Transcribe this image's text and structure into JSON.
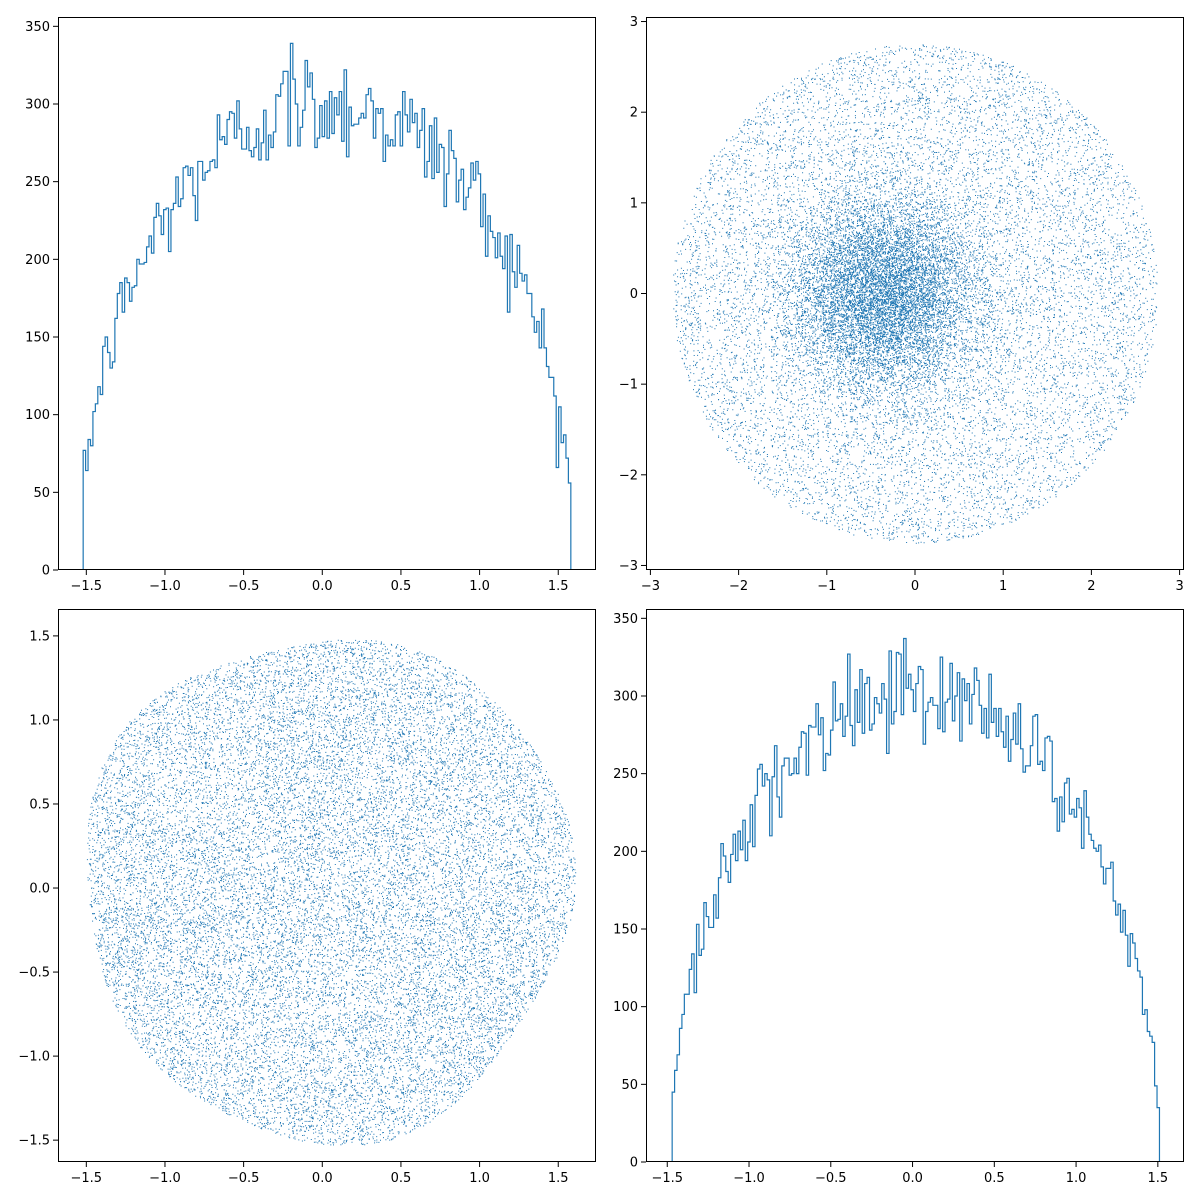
{
  "figure": {
    "background": "#ffffff",
    "series_color": "#1f77b4"
  },
  "chart_data": [
    {
      "type": "histogram",
      "panel": "top-left",
      "title": "",
      "xlabel": "",
      "ylabel": "",
      "xlim": [
        -1.68,
        1.74
      ],
      "ylim": [
        0,
        356
      ],
      "xticks": [
        -1.5,
        -1.0,
        -0.5,
        0.0,
        0.5,
        1.0,
        1.5
      ],
      "xtick_labels": [
        "−1.5",
        "−1.0",
        "−0.5",
        "0.0",
        "0.5",
        "1.0",
        "1.5"
      ],
      "yticks": [
        0,
        50,
        100,
        150,
        200,
        250,
        300,
        350
      ],
      "ytick_labels": [
        "0",
        "50",
        "100",
        "150",
        "200",
        "250",
        "300",
        "350"
      ],
      "histtype": "step",
      "bins": 200,
      "bin_range": [
        -1.52,
        1.58
      ],
      "envelope": {
        "center": 0.03,
        "half_width": 1.57,
        "peak": 300
      },
      "tallest_bin": {
        "x": -0.2,
        "count": 339
      },
      "grid": false
    },
    {
      "type": "scatter",
      "panel": "top-right",
      "title": "",
      "xlabel": "",
      "ylabel": "",
      "xlim": [
        -3.05,
        3.05
      ],
      "ylim": [
        -3.05,
        3.05
      ],
      "xticks": [
        -3,
        -2,
        -1,
        0,
        1,
        2,
        3
      ],
      "xtick_labels": [
        "−3",
        "−2",
        "−1",
        "0",
        "1",
        "2",
        "3"
      ],
      "yticks": [
        -3,
        -2,
        -1,
        0,
        1,
        2,
        3
      ],
      "ytick_labels": [
        "−3",
        "−2",
        "−1",
        "0",
        "1",
        "2",
        "3"
      ],
      "marker": "pixel",
      "n_points": 22000,
      "support_radius": 2.75,
      "dense_center": [
        -0.35,
        0.0
      ],
      "grid": false
    },
    {
      "type": "scatter",
      "panel": "bottom-left",
      "title": "",
      "xlabel": "",
      "ylabel": "",
      "xlim": [
        -1.68,
        1.74
      ],
      "ylim": [
        -1.63,
        1.66
      ],
      "xticks": [
        -1.5,
        -1.0,
        -0.5,
        0.0,
        0.5,
        1.0,
        1.5
      ],
      "xtick_labels": [
        "−1.5",
        "−1.0",
        "−0.5",
        "0.0",
        "0.5",
        "1.0",
        "1.5"
      ],
      "yticks": [
        -1.5,
        -1.0,
        -0.5,
        0.0,
        0.5,
        1.0,
        1.5
      ],
      "ytick_labels": [
        "−1.5",
        "−1.0",
        "−0.5",
        "0.0",
        "0.5",
        "1.0",
        "1.5"
      ],
      "marker": "pixel",
      "n_points": 22000,
      "support_center": [
        0.03,
        0.01
      ],
      "support_radius": [
        1.55,
        1.5
      ],
      "grid": false
    },
    {
      "type": "histogram",
      "panel": "bottom-right",
      "title": "",
      "xlabel": "",
      "ylabel": "",
      "xlim": [
        -1.63,
        1.66
      ],
      "ylim": [
        0,
        356
      ],
      "xticks": [
        -1.5,
        -1.0,
        -0.5,
        0.0,
        0.5,
        1.0,
        1.5
      ],
      "xtick_labels": [
        "−1.5",
        "−1.0",
        "−0.5",
        "0.0",
        "0.5",
        "1.0",
        "1.5"
      ],
      "yticks": [
        0,
        50,
        100,
        150,
        200,
        250,
        300,
        350
      ],
      "ytick_labels": [
        "0",
        "50",
        "100",
        "150",
        "200",
        "250",
        "300",
        "350"
      ],
      "histtype": "step",
      "bins": 200,
      "bin_range": [
        -1.47,
        1.51
      ],
      "envelope": {
        "center": 0.02,
        "half_width": 1.5,
        "peak": 300
      },
      "tallest_bin": {
        "x": -0.05,
        "count": 337
      },
      "grid": false
    }
  ]
}
